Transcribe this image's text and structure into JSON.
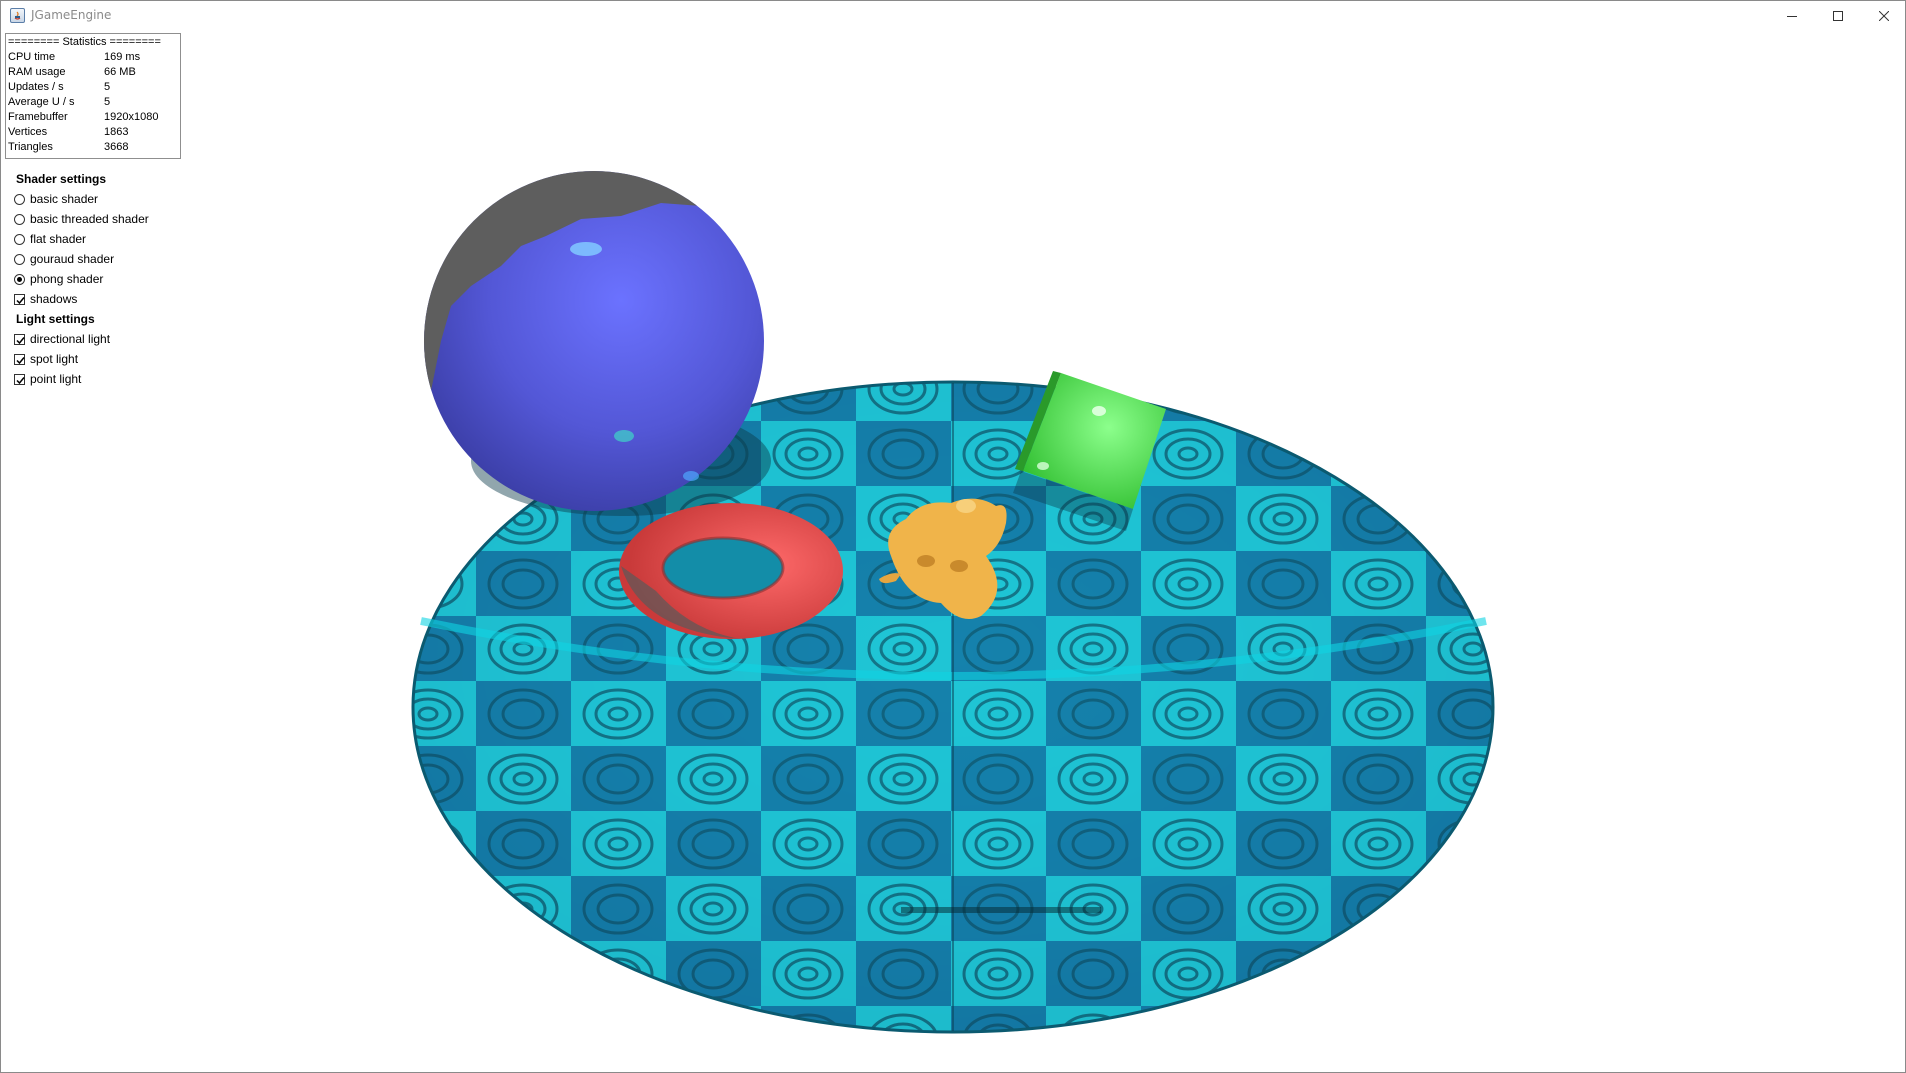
{
  "window": {
    "title": "JGameEngine",
    "controls": {
      "minimize": "minimize",
      "maximize": "maximize",
      "close": "close"
    }
  },
  "statistics": {
    "header": "======== Statistics ========",
    "rows": [
      {
        "label": "CPU time",
        "value": "169 ms"
      },
      {
        "label": "RAM usage",
        "value": "66 MB"
      },
      {
        "label": "Updates / s",
        "value": "5"
      },
      {
        "label": "Average U / s",
        "value": "5"
      },
      {
        "label": "Framebuffer",
        "value": "1920x1080"
      },
      {
        "label": "Vertices",
        "value": "1863"
      },
      {
        "label": "Triangles",
        "value": "3668"
      }
    ]
  },
  "shader_settings": {
    "heading": "Shader settings",
    "options": [
      {
        "label": "basic shader",
        "selected": false
      },
      {
        "label": "basic threaded shader",
        "selected": false
      },
      {
        "label": "flat shader",
        "selected": false
      },
      {
        "label": "gouraud shader",
        "selected": false
      },
      {
        "label": "phong shader",
        "selected": true
      }
    ],
    "shadows": {
      "label": "shadows",
      "checked": true
    }
  },
  "light_settings": {
    "heading": "Light settings",
    "options": [
      {
        "label": "directional light",
        "checked": true
      },
      {
        "label": "spot light",
        "checked": true
      },
      {
        "label": "point light",
        "checked": true
      }
    ]
  },
  "scene": {
    "objects": [
      "textured-disc",
      "blue-sphere",
      "red-torus",
      "gold-monkey-head",
      "green-cube"
    ],
    "colors": {
      "disc": "#1aa6bd",
      "sphere": "#5a5fd6",
      "sphere_shadow_side": "#5e5e5e",
      "torus": "#e24a4a",
      "monkey": "#f0b44a",
      "cube": "#4fe04f"
    }
  }
}
